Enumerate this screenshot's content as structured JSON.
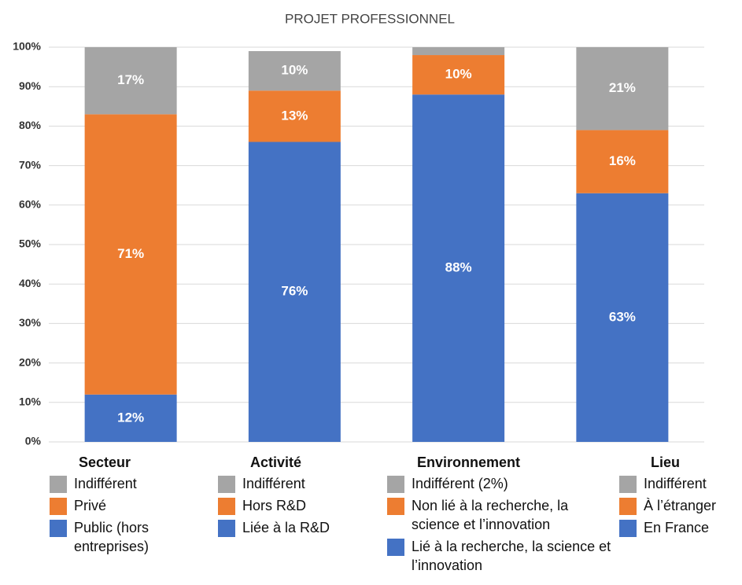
{
  "chart_data": {
    "type": "stacked_bar",
    "title": "PROJET PROFESSIONNEL",
    "ylim": [
      0,
      100
    ],
    "yticks": [
      {
        "value": 0,
        "label": "0%"
      },
      {
        "value": 10,
        "label": "10%"
      },
      {
        "value": 20,
        "label": "20%"
      },
      {
        "value": 30,
        "label": "30%"
      },
      {
        "value": 40,
        "label": "40%"
      },
      {
        "value": 50,
        "label": "50%"
      },
      {
        "value": 60,
        "label": "60%"
      },
      {
        "value": 70,
        "label": "70%"
      },
      {
        "value": 80,
        "label": "80%"
      },
      {
        "value": 90,
        "label": "90%"
      },
      {
        "value": 100,
        "label": "100%"
      }
    ],
    "grid": true,
    "categories": [
      {
        "name": "Secteur",
        "segments": [
          {
            "name": "Public (hors entreprises)",
            "color": "#4472c4",
            "value": 12,
            "value_label": "12%"
          },
          {
            "name": "Privé",
            "color": "#ed7d31",
            "value": 71,
            "value_label": "71%"
          },
          {
            "name": "Indifférent",
            "color": "#a5a5a5",
            "value": 17,
            "value_label": "17%"
          }
        ]
      },
      {
        "name": "Activité",
        "segments": [
          {
            "name": "Liée à la R&D",
            "color": "#4472c4",
            "value": 76,
            "value_label": "76%"
          },
          {
            "name": "Hors R&D",
            "color": "#ed7d31",
            "value": 13,
            "value_label": "13%"
          },
          {
            "name": "Indifférent",
            "color": "#a5a5a5",
            "value": 10,
            "value_label": "10%"
          }
        ]
      },
      {
        "name": "Environnement",
        "segments": [
          {
            "name": "Lié à la recherche, la science et l’innovation",
            "color": "#4472c4",
            "value": 88,
            "value_label": "88%"
          },
          {
            "name": "Non lié à la recherche, la science et l’innovation",
            "color": "#ed7d31",
            "value": 10,
            "value_label": "10%"
          },
          {
            "name": "Indifférent (2%)",
            "color": "#a5a5a5",
            "value": 2
          }
        ]
      },
      {
        "name": "Lieu",
        "segments": [
          {
            "name": "En France",
            "color": "#4472c4",
            "value": 63,
            "value_label": "63%"
          },
          {
            "name": "À l’étranger",
            "color": "#ed7d31",
            "value": 16,
            "value_label": "16%"
          },
          {
            "name": "Indifférent",
            "color": "#a5a5a5",
            "value": 21,
            "value_label": "21%"
          }
        ]
      }
    ]
  }
}
